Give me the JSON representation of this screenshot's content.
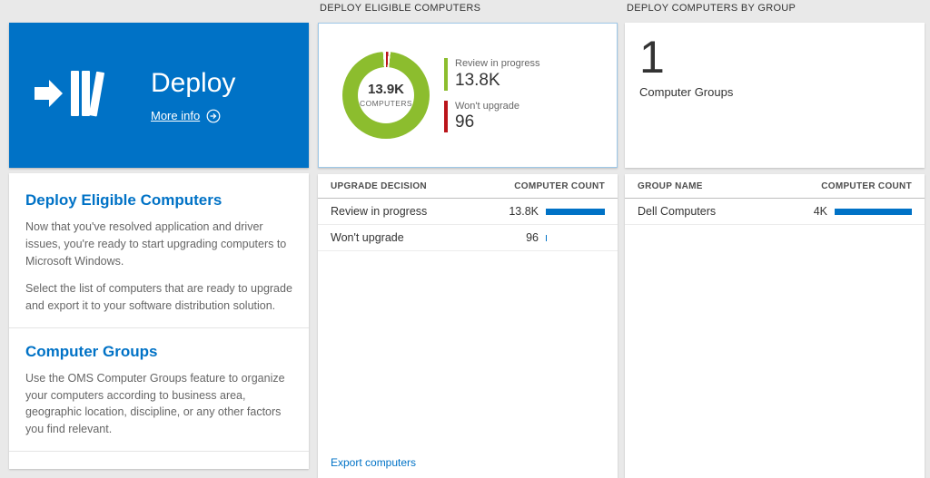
{
  "colors": {
    "accent": "#0072c6",
    "tile": "#0072c6",
    "bar": "#0072c6",
    "green": "#8cbd2e",
    "red": "#ba141a"
  },
  "left": {
    "tile": {
      "title": "Deploy",
      "more_info_label": "More info"
    },
    "sections": [
      {
        "heading": "Deploy Eligible Computers",
        "paragraphs": [
          "Now that you've resolved application and driver issues, you're ready to start upgrading computers to Microsoft Windows.",
          "Select the list of computers that are ready to upgrade and export it to your software distribution solution."
        ]
      },
      {
        "heading": "Computer Groups",
        "paragraphs": [
          "Use the OMS Computer Groups feature to organize your computers according to business area, geographic location, discipline, or any other factors you find relevant."
        ]
      }
    ]
  },
  "middle": {
    "header": "DEPLOY ELIGIBLE COMPUTERS",
    "donut": {
      "center_value": "13.9K",
      "center_label": "COMPUTERS",
      "legend": [
        {
          "label": "Review in progress",
          "value": "13.8K"
        },
        {
          "label": "Won't upgrade",
          "value": "96"
        }
      ]
    },
    "table": {
      "columns": [
        "UPGRADE DECISION",
        "COMPUTER COUNT"
      ],
      "rows": [
        {
          "name": "Review in progress",
          "value": "13.8K",
          "bar_pct": 100
        },
        {
          "name": "Won't upgrade",
          "value": "96",
          "bar_pct": 2
        }
      ]
    },
    "action_label": "Export computers"
  },
  "right": {
    "header": "DEPLOY COMPUTERS BY GROUP",
    "summary": {
      "value": "1",
      "label": "Computer Groups"
    },
    "table": {
      "columns": [
        "GROUP NAME",
        "COMPUTER COUNT"
      ],
      "rows": [
        {
          "name": "Dell Computers",
          "value": "4K",
          "bar_pct": 100
        }
      ]
    }
  },
  "chart_data": [
    {
      "type": "pie",
      "title": "Deploy Eligible Computers",
      "center_label": "13.9K COMPUTERS",
      "labels": [
        "Review in progress",
        "Won't upgrade"
      ],
      "values": [
        13800,
        96
      ],
      "value_labels": [
        "13.8K",
        "96"
      ],
      "colors": [
        "#8cbd2e",
        "#ba141a"
      ],
      "legend_position": "right",
      "donut": true
    },
    {
      "type": "bar",
      "title": "Upgrade decision / Computer count",
      "orientation": "horizontal",
      "categories": [
        "Review in progress",
        "Won't upgrade"
      ],
      "values": [
        13800,
        96
      ],
      "value_labels": [
        "13.8K",
        "96"
      ],
      "bar_color": "#0072c6"
    },
    {
      "type": "bar",
      "title": "Group name / Computer count",
      "orientation": "horizontal",
      "categories": [
        "Dell Computers"
      ],
      "values": [
        4000
      ],
      "value_labels": [
        "4K"
      ],
      "bar_color": "#0072c6"
    }
  ]
}
